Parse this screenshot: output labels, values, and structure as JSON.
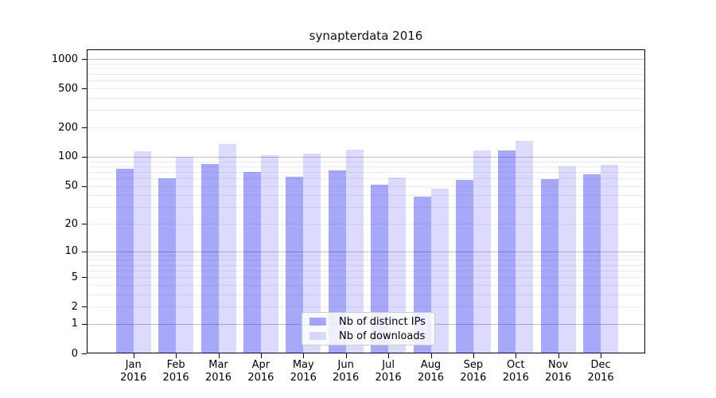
{
  "chart_data": {
    "type": "bar",
    "title": "synapterdata 2016",
    "categories": [
      "Jan 2016",
      "Feb 2016",
      "Mar 2016",
      "Apr 2016",
      "May 2016",
      "Jun 2016",
      "Jul 2016",
      "Aug 2016",
      "Sep 2016",
      "Oct 2016",
      "Nov 2016",
      "Dec 2016"
    ],
    "series": [
      {
        "name": "Nb of distinct IPs",
        "color": "#0000f0",
        "alpha": 0.34,
        "values": [
          75,
          60,
          85,
          70,
          62,
          72,
          51,
          39,
          58,
          117,
          59,
          66
        ]
      },
      {
        "name": "Nb of downloads",
        "color": "#0000f0",
        "alpha": 0.14,
        "values": [
          113,
          100,
          134,
          104,
          107,
          118,
          61,
          47,
          116,
          146,
          80,
          83
        ]
      }
    ],
    "xlabel": "",
    "ylabel": "",
    "yscale": "log1p",
    "y_ticks": [
      0,
      1,
      2,
      5,
      10,
      20,
      50,
      100,
      200,
      500,
      1000
    ],
    "major_grid_values": [
      1,
      10,
      100,
      1000
    ],
    "ylim": [
      0,
      1230
    ],
    "grid": true,
    "legend_position": "lower center"
  }
}
